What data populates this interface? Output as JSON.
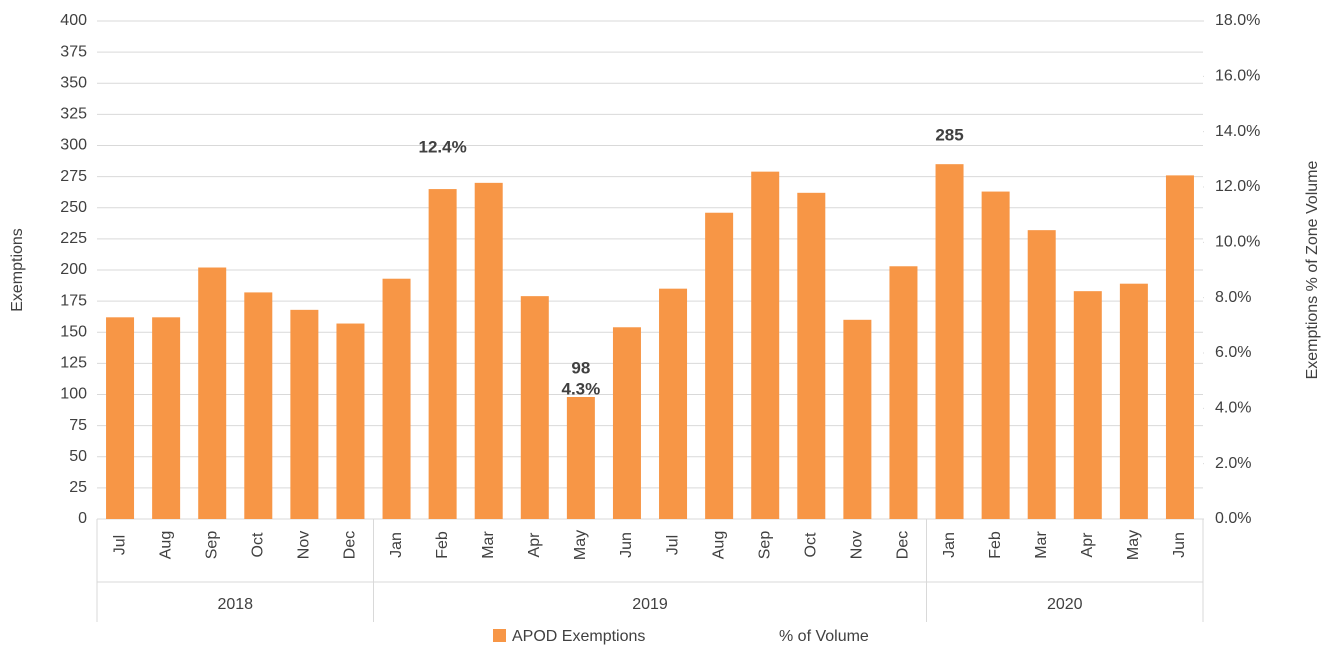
{
  "chart_data": {
    "type": "bar",
    "categories": [
      "Jul",
      "Aug",
      "Sep",
      "Oct",
      "Nov",
      "Dec",
      "Jan",
      "Feb",
      "Mar",
      "Apr",
      "May",
      "Jun",
      "Jul",
      "Aug",
      "Sep",
      "Oct",
      "Nov",
      "Dec",
      "Jan",
      "Feb",
      "Mar",
      "Apr",
      "May",
      "Jun"
    ],
    "years": [
      "2018",
      "2018",
      "2018",
      "2018",
      "2018",
      "2018",
      "2019",
      "2019",
      "2019",
      "2019",
      "2019",
      "2019",
      "2019",
      "2019",
      "2019",
      "2019",
      "2019",
      "2019",
      "2020",
      "2020",
      "2020",
      "2020",
      "2020",
      "2020"
    ],
    "series": [
      {
        "name": "APOD Exemptions",
        "color": "#f79646",
        "values": [
          162,
          162,
          202,
          182,
          168,
          157,
          193,
          265,
          270,
          179,
          98,
          154,
          185,
          246,
          279,
          262,
          160,
          203,
          285,
          263,
          232,
          183,
          189,
          276
        ],
        "value_labels": [
          null,
          null,
          null,
          null,
          null,
          null,
          null,
          null,
          null,
          null,
          "98",
          null,
          null,
          null,
          null,
          null,
          null,
          null,
          "285",
          null,
          null,
          null,
          null,
          null
        ]
      },
      {
        "name": "% of Volume",
        "type": "line",
        "axis": "y2",
        "color": "none",
        "values": [
          null,
          null,
          null,
          null,
          null,
          null,
          null,
          12.4,
          null,
          null,
          4.3,
          null,
          null,
          null,
          null,
          null,
          null,
          null,
          null,
          null,
          null,
          null,
          null,
          null
        ],
        "value_labels": [
          null,
          null,
          null,
          null,
          null,
          null,
          null,
          "12.4%",
          null,
          null,
          "4.3%",
          null,
          null,
          null,
          null,
          null,
          null,
          null,
          null,
          null,
          null,
          null,
          null,
          null
        ]
      }
    ],
    "ylabel": "Exemptions",
    "y2label": "Exemptions % of Zone Volume",
    "ylim": [
      0,
      400
    ],
    "yticks": [
      0,
      25,
      50,
      75,
      100,
      125,
      150,
      175,
      200,
      225,
      250,
      275,
      300,
      325,
      350,
      375,
      400
    ],
    "y2lim": [
      0,
      18
    ],
    "y2ticks": [
      {
        "value": 0,
        "label": "0.0%"
      },
      {
        "value": 2,
        "label": "2.0%"
      },
      {
        "value": 4,
        "label": "4.0%"
      },
      {
        "value": 6,
        "label": "6.0%"
      },
      {
        "value": 8,
        "label": "8.0%"
      },
      {
        "value": 10,
        "label": "10.0%"
      },
      {
        "value": 12,
        "label": "12.0%"
      },
      {
        "value": 14,
        "label": "14.0%"
      },
      {
        "value": 16,
        "label": "16.0%"
      },
      {
        "value": 18,
        "label": "18.0%"
      }
    ],
    "grid": true,
    "legend": "bottom"
  }
}
